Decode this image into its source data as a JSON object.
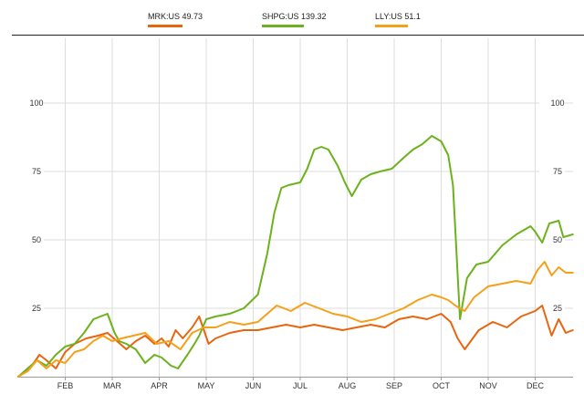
{
  "legend": [
    {
      "ticker": "MRK:US",
      "value": "49.73",
      "color": "#e8650f"
    },
    {
      "ticker": "SHPG:US",
      "value": "139.32",
      "color": "#6cb21d"
    },
    {
      "ticker": "LLY:US",
      "value": "51.1",
      "color": "#f5a01a"
    }
  ],
  "chart_data": {
    "type": "line",
    "title": "",
    "xlabel": "",
    "ylabel": "",
    "x_ticks": [
      "FEB",
      "MAR",
      "APR",
      "MAY",
      "JUN",
      "JUL",
      "AUG",
      "SEP",
      "OCT",
      "NOV",
      "DEC"
    ],
    "y_ticks": [
      25,
      50,
      75,
      100
    ],
    "ylim": [
      0,
      100
    ],
    "grid": true,
    "axis_labels_both_sides": true,
    "legend_position": "top",
    "x_unit": "month (0 = start of January)",
    "series": [
      {
        "name": "MRK:US",
        "color": "#e8650f",
        "x": [
          0.0,
          0.25,
          0.45,
          0.6,
          0.8,
          1.0,
          1.2,
          1.45,
          1.7,
          1.9,
          2.1,
          2.3,
          2.5,
          2.7,
          2.9,
          3.05,
          3.2,
          3.35,
          3.5,
          3.7,
          3.85,
          4.05,
          4.2,
          4.5,
          4.8,
          5.1,
          5.4,
          5.7,
          6.0,
          6.3,
          6.6,
          6.9,
          7.2,
          7.5,
          7.8,
          8.1,
          8.4,
          8.7,
          9.0,
          9.2,
          9.35,
          9.5,
          9.8,
          10.1,
          10.4,
          10.7,
          11.0,
          11.15,
          11.35,
          11.5,
          11.65,
          11.8
        ],
        "values": [
          0,
          3,
          8,
          6,
          3,
          9,
          12,
          14,
          15,
          16,
          13,
          10,
          13,
          15,
          12,
          14,
          11,
          17,
          14,
          18,
          22,
          12,
          14,
          16,
          17,
          17,
          18,
          19,
          18,
          19,
          18,
          17,
          18,
          19,
          18,
          21,
          22,
          21,
          23,
          20,
          14,
          10,
          17,
          20,
          18,
          22,
          24,
          26,
          15,
          21,
          16,
          17
        ]
      },
      {
        "name": "SHPG:US",
        "color": "#6cb21d",
        "x": [
          0.0,
          0.2,
          0.4,
          0.6,
          0.8,
          1.0,
          1.2,
          1.4,
          1.6,
          1.75,
          1.9,
          2.05,
          2.15,
          2.3,
          2.5,
          2.7,
          2.9,
          3.05,
          3.25,
          3.4,
          3.6,
          3.75,
          3.85,
          4.0,
          4.2,
          4.5,
          4.8,
          5.1,
          5.3,
          5.45,
          5.6,
          5.75,
          6.0,
          6.15,
          6.3,
          6.45,
          6.6,
          6.8,
          6.95,
          7.1,
          7.3,
          7.5,
          7.7,
          7.95,
          8.2,
          8.4,
          8.6,
          8.8,
          9.0,
          9.15,
          9.25,
          9.4,
          9.55,
          9.75,
          10.0,
          10.3,
          10.6,
          10.9,
          11.0,
          11.15,
          11.3,
          11.5,
          11.6,
          11.8
        ],
        "values": [
          0,
          3,
          6,
          4,
          8,
          11,
          12,
          16,
          21,
          22,
          23,
          16,
          13,
          12,
          10,
          5,
          8,
          7,
          4,
          3,
          8,
          12,
          15,
          21,
          22,
          23,
          25,
          30,
          45,
          60,
          69,
          70,
          71,
          76,
          83,
          84,
          83,
          77,
          71,
          66,
          72,
          74,
          75,
          76,
          80,
          83,
          85,
          88,
          86,
          81,
          70,
          21,
          36,
          41,
          42,
          48,
          52,
          55,
          53,
          49,
          56,
          57,
          51,
          52
        ]
      },
      {
        "name": "LLY:US",
        "color": "#f5a01a",
        "x": [
          0.0,
          0.2,
          0.4,
          0.6,
          0.8,
          1.0,
          1.2,
          1.4,
          1.6,
          1.8,
          2.0,
          2.2,
          2.45,
          2.7,
          2.95,
          3.2,
          3.45,
          3.7,
          3.95,
          4.2,
          4.5,
          4.8,
          5.1,
          5.3,
          5.5,
          5.8,
          6.1,
          6.4,
          6.7,
          7.0,
          7.3,
          7.6,
          7.9,
          8.2,
          8.5,
          8.8,
          9.0,
          9.15,
          9.3,
          9.5,
          9.7,
          10.0,
          10.3,
          10.6,
          10.9,
          11.05,
          11.2,
          11.35,
          11.5,
          11.65,
          11.8
        ],
        "values": [
          0,
          2,
          6,
          3,
          6,
          5,
          9,
          10,
          13,
          15,
          13,
          14,
          15,
          16,
          12,
          13,
          10,
          16,
          18,
          18,
          20,
          19,
          20,
          23,
          26,
          24,
          27,
          25,
          23,
          22,
          20,
          21,
          23,
          25,
          28,
          30,
          29,
          28,
          26,
          24,
          29,
          33,
          34,
          35,
          34,
          39,
          42,
          37,
          40,
          38,
          38
        ]
      }
    ]
  }
}
